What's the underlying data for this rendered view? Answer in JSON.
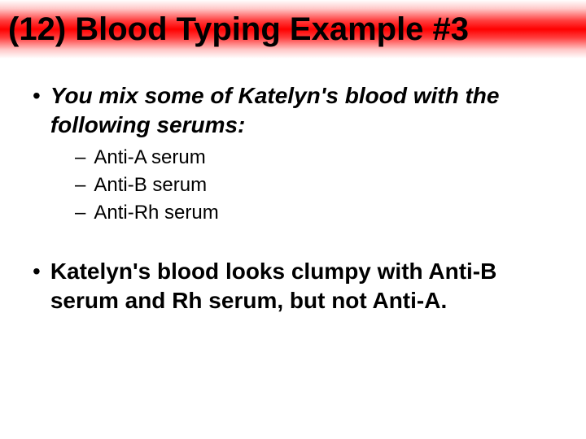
{
  "title": "(12)  Blood Typing Example #3",
  "bullets": [
    {
      "text": "You mix some of Katelyn's blood with the following serums:",
      "italic": true,
      "sub": [
        "Anti-A serum",
        "Anti-B serum",
        "Anti-Rh serum"
      ]
    },
    {
      "text": "Katelyn's blood looks clumpy with Anti-B serum and Rh serum, but not Anti-A.",
      "italic": false,
      "sub": []
    }
  ],
  "style": {
    "title_fontsize": 40,
    "l1_fontsize": 28,
    "l2_fontsize": 24,
    "gradient_colors": [
      "#ffffff",
      "#ffc8c8",
      "#ff4040",
      "#ff0000",
      "#ff4040",
      "#ffc8c8",
      "#ffffff"
    ],
    "text_color": "#000000",
    "background_color": "#ffffff",
    "l1_marker": "•",
    "l2_marker": "–"
  }
}
